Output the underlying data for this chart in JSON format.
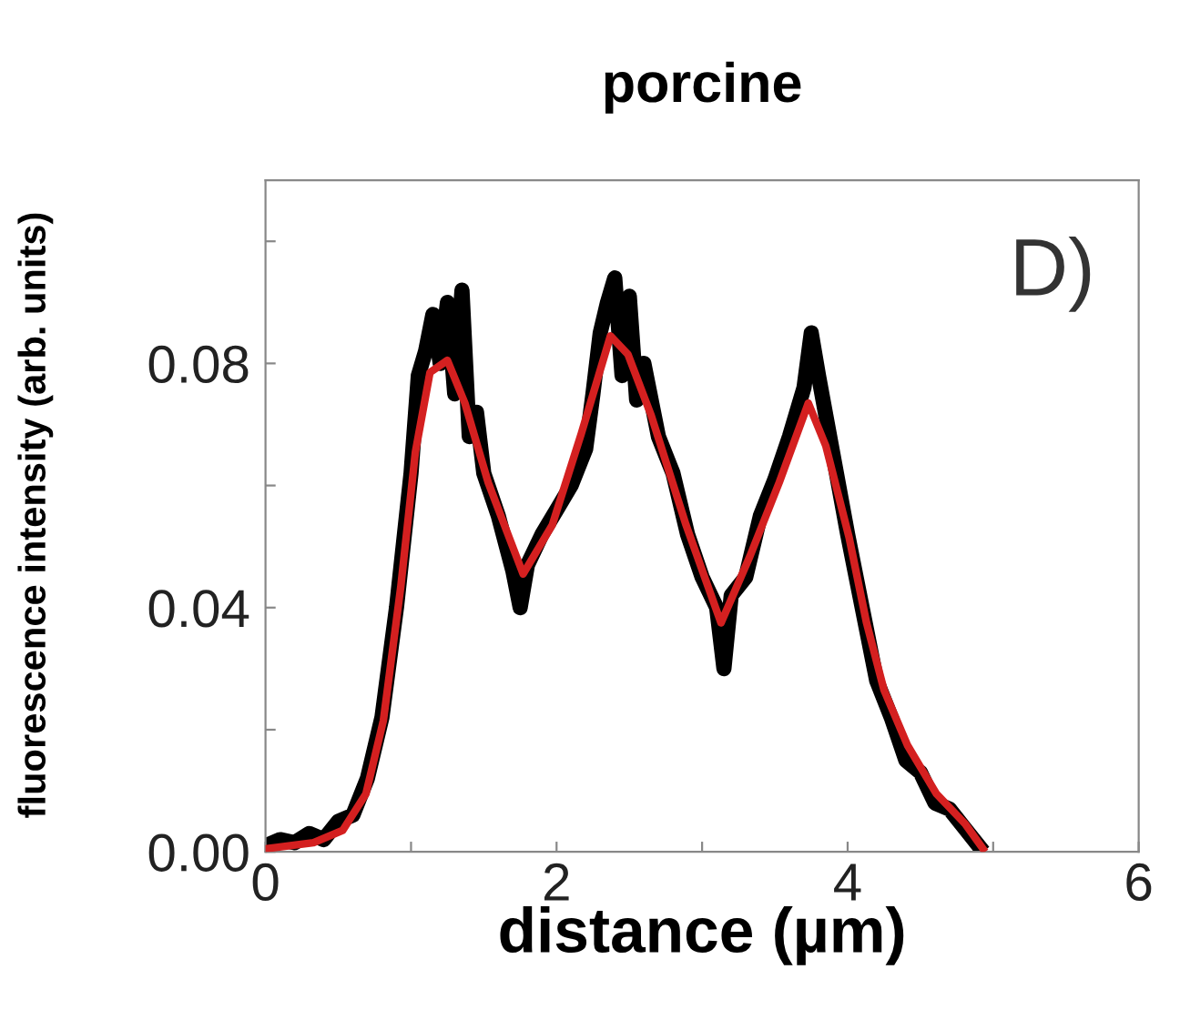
{
  "chart_data": {
    "type": "line",
    "title": "porcine",
    "xlabel": "distance (µm)",
    "ylabel": "fluorescence intensity (arb. units)",
    "annotations": [
      "D)"
    ],
    "xlim": [
      0,
      6
    ],
    "xticks": [
      0,
      {
        "value": 1,
        "label": null
      },
      2,
      {
        "value": 3,
        "label": null
      },
      4,
      {
        "value": 5,
        "label": null
      },
      6
    ],
    "ylim": [
      0,
      0.11
    ],
    "yticks": [
      {
        "value": 0,
        "label": "0.00"
      },
      {
        "value": 0.02,
        "label": null
      },
      0.04,
      {
        "value": 0.06,
        "label": null
      },
      0.08,
      {
        "value": 0.1,
        "label": null
      }
    ],
    "grid": false,
    "legend": false,
    "marker": "none",
    "line_style": "solid",
    "series": [
      {
        "color": "#000000",
        "x": [
          0,
          0.1,
          0.2,
          0.3,
          0.4,
          0.5,
          0.6,
          0.7,
          0.8,
          0.9,
          1.0,
          1.05,
          1.1,
          1.15,
          1.2,
          1.25,
          1.3,
          1.35,
          1.4,
          1.45,
          1.5,
          1.6,
          1.7,
          1.75,
          1.8,
          1.9,
          2.0,
          2.1,
          2.2,
          2.25,
          2.3,
          2.35,
          2.4,
          2.45,
          2.5,
          2.55,
          2.6,
          2.7,
          2.8,
          2.9,
          3.0,
          3.1,
          3.15,
          3.2,
          3.3,
          3.4,
          3.5,
          3.6,
          3.7,
          3.75,
          3.8,
          3.9,
          4.0,
          4.1,
          4.2,
          4.3,
          4.4,
          4.5,
          4.6,
          4.7,
          4.8,
          4.9
        ],
        "values": [
          0.001,
          0.002,
          0.0015,
          0.003,
          0.002,
          0.005,
          0.006,
          0.012,
          0.022,
          0.04,
          0.062,
          0.078,
          0.082,
          0.088,
          0.08,
          0.09,
          0.075,
          0.092,
          0.068,
          0.072,
          0.062,
          0.055,
          0.046,
          0.04,
          0.047,
          0.052,
          0.056,
          0.06,
          0.066,
          0.075,
          0.085,
          0.09,
          0.094,
          0.078,
          0.091,
          0.074,
          0.08,
          0.068,
          0.062,
          0.052,
          0.045,
          0.04,
          0.03,
          0.042,
          0.045,
          0.055,
          0.061,
          0.068,
          0.076,
          0.085,
          0.078,
          0.065,
          0.052,
          0.04,
          0.028,
          0.022,
          0.015,
          0.013,
          0.008,
          0.007,
          0.004,
          0.001
        ]
      },
      {
        "color": "#d42020",
        "x": [
          0,
          0.33,
          0.53,
          0.69,
          0.81,
          0.93,
          1.03,
          1.13,
          1.25,
          1.37,
          1.53,
          1.77,
          1.97,
          2.17,
          2.37,
          2.49,
          2.65,
          2.89,
          3.13,
          3.33,
          3.53,
          3.73,
          3.85,
          4.01,
          4.13,
          4.25,
          4.41,
          4.61,
          4.81,
          4.93
        ],
        "values": [
          0.0005,
          0.0015,
          0.0035,
          0.0095,
          0.0215,
          0.0435,
          0.0655,
          0.0785,
          0.0805,
          0.0735,
          0.0605,
          0.0455,
          0.0535,
          0.0685,
          0.0845,
          0.0815,
          0.0715,
          0.0535,
          0.0375,
          0.0485,
          0.0605,
          0.0735,
          0.0665,
          0.0515,
          0.0375,
          0.0265,
          0.0175,
          0.0095,
          0.0045,
          0.0005
        ]
      }
    ]
  }
}
